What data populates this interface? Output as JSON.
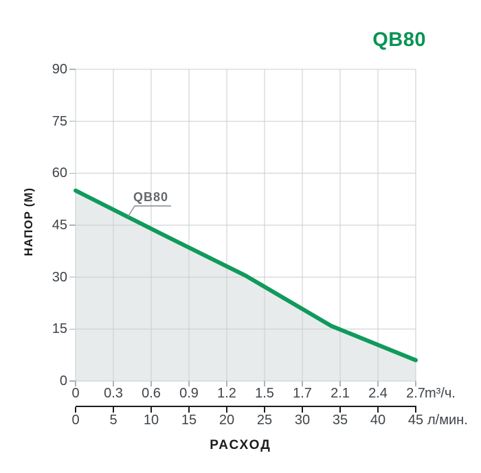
{
  "header": {
    "title": "QB80",
    "title_color": "#089355"
  },
  "chart_data": {
    "type": "line",
    "title": "QB80",
    "curve_label": "QB80",
    "x_label": "РАСХОД",
    "y_axis": {
      "label": "НАПОР (М)",
      "ticks": [
        "90",
        "75",
        "60",
        "45",
        "30",
        "15",
        "0"
      ],
      "min": 0,
      "max": 90
    },
    "x_axis_primary": {
      "unit": "m³/ч.",
      "ticks": [
        "0",
        "0.3",
        "0.6",
        "0.9",
        "1.2",
        "1.5",
        "1.7",
        "2.1",
        "2.4",
        "2.7"
      ],
      "min": 0,
      "max": 2.7
    },
    "x_axis_secondary": {
      "unit": "л/мин.",
      "ticks": [
        "0",
        "5",
        "10",
        "15",
        "20",
        "25",
        "30",
        "35",
        "40",
        "45"
      ],
      "min": 0,
      "max": 45
    },
    "series": [
      {
        "name": "QB80",
        "color": "#109A5C",
        "points_m3h_head_m": [
          [
            0,
            55
          ],
          [
            0.68,
            42.5
          ],
          [
            1.35,
            30.4
          ],
          [
            2.03,
            15.9
          ],
          [
            2.7,
            6
          ]
        ]
      }
    ],
    "area_fill": true,
    "grid": true,
    "legend": "none",
    "colors": {
      "grid": "#C7CCCE",
      "area": "#E8EBEC",
      "leader": "#84898D",
      "axis_secondary": "#1A1C1E",
      "tick_text": "#3F4449"
    }
  }
}
